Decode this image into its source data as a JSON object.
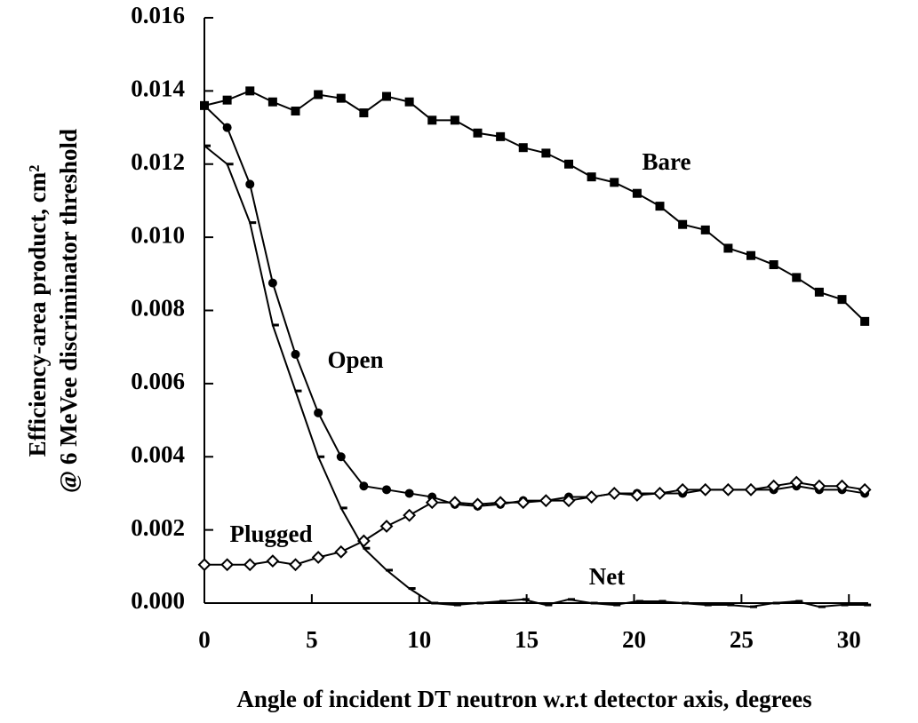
{
  "chart_data": {
    "type": "line",
    "x_label": "Angle of incident DT neutron w.r.t detector axis, degrees",
    "y_label": [
      "Efficiency-area product, cm²",
      "@ 6 MeVee discriminator threshold"
    ],
    "x": [
      0,
      1.06,
      2.12,
      3.18,
      4.24,
      5.3,
      6.36,
      7.42,
      8.48,
      9.54,
      10.6,
      11.66,
      12.72,
      13.78,
      14.84,
      15.9,
      16.96,
      18.02,
      19.08,
      20.14,
      21.2,
      22.26,
      23.32,
      24.38,
      25.44,
      26.5,
      27.56,
      28.62,
      29.68,
      30.74
    ],
    "series": [
      {
        "name": "Bare",
        "color": "#000000",
        "marker": "square",
        "values": [
          0.0136,
          0.01375,
          0.014,
          0.0137,
          0.01345,
          0.0139,
          0.0138,
          0.0134,
          0.01385,
          0.0137,
          0.0132,
          0.0132,
          0.01285,
          0.01275,
          0.01245,
          0.0123,
          0.012,
          0.01165,
          0.0115,
          0.0112,
          0.01085,
          0.01035,
          0.0102,
          0.0097,
          0.0095,
          0.00925,
          0.0089,
          0.0085,
          0.0083,
          0.0077
        ]
      },
      {
        "name": "Open",
        "color": "#000000",
        "marker": "circle",
        "values": [
          0.0136,
          0.013,
          0.01145,
          0.00875,
          0.0068,
          0.0052,
          0.004,
          0.0032,
          0.0031,
          0.003,
          0.0029,
          0.0027,
          0.00265,
          0.0027,
          0.0028,
          0.0028,
          0.0029,
          0.0029,
          0.003,
          0.003,
          0.003,
          0.003,
          0.0031,
          0.0031,
          0.0031,
          0.0031,
          0.0032,
          0.0031,
          0.0031,
          0.003
        ]
      },
      {
        "name": "Plugged",
        "color": "#000000",
        "marker": "diamond",
        "values": [
          0.00105,
          0.00105,
          0.00105,
          0.00115,
          0.00105,
          0.00125,
          0.0014,
          0.0017,
          0.0021,
          0.0024,
          0.00275,
          0.00275,
          0.0027,
          0.00275,
          0.00275,
          0.0028,
          0.0028,
          0.0029,
          0.003,
          0.00295,
          0.003,
          0.0031,
          0.0031,
          0.0031,
          0.0031,
          0.0032,
          0.0033,
          0.0032,
          0.0032,
          0.0031
        ]
      },
      {
        "name": "Net",
        "color": "#000000",
        "marker": "dash",
        "values": [
          0.0125,
          0.012,
          0.0104,
          0.0076,
          0.0058,
          0.004,
          0.0026,
          0.0015,
          0.0009,
          0.0004,
          0,
          -5e-05,
          0,
          5e-05,
          0.0001,
          -5e-05,
          0.0001,
          0,
          -5e-05,
          5e-05,
          5e-05,
          0,
          -5e-05,
          -5e-05,
          -0.0001,
          0,
          5e-05,
          -0.0001,
          -5e-05,
          -5e-05
        ]
      }
    ],
    "xlim": [
      0,
      30.9
    ],
    "ylim": [
      0,
      0.016
    ],
    "xticks": [
      0,
      5,
      10,
      15,
      20,
      25,
      30
    ],
    "yticks": [
      {
        "value": 0,
        "label": "0.000"
      },
      {
        "value": 0.002,
        "label": "0.002"
      },
      {
        "value": 0.004,
        "label": "0.004"
      },
      {
        "value": 0.006,
        "label": "0.006"
      },
      {
        "value": 0.008,
        "label": "0.008"
      },
      {
        "value": 0.01,
        "label": "0.010"
      },
      {
        "value": 0.012,
        "label": "0.012"
      },
      {
        "value": 0.014,
        "label": "0.014"
      },
      {
        "value": 0.016,
        "label": "0.016"
      }
    ],
    "grid": false
  }
}
